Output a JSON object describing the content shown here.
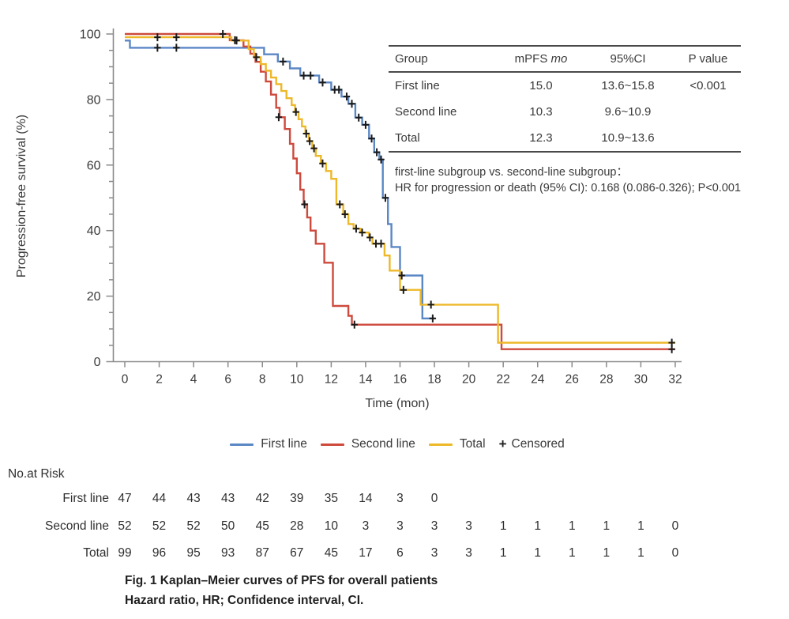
{
  "chart_data": {
    "type": "line",
    "subtype": "kaplan-meier-step",
    "title": "",
    "xlabel": "Time (mon)",
    "ylabel": "Progression-free survival (%)",
    "xlim": [
      0,
      32
    ],
    "ylim": [
      0,
      100
    ],
    "x_ticks": [
      0,
      2,
      4,
      6,
      8,
      10,
      12,
      14,
      16,
      18,
      20,
      22,
      24,
      26,
      28,
      30,
      32
    ],
    "y_ticks": [
      0,
      20,
      40,
      60,
      80,
      100
    ],
    "y_minor_step": 5,
    "grid": false,
    "legend_position": "bottom",
    "censor_color": "#1a1a1a",
    "axis_color": "#8a8a8a",
    "series": [
      {
        "name": "First line",
        "color": "#5b87c5",
        "steps": [
          [
            0,
            98
          ],
          [
            0.3,
            95.8
          ],
          [
            8.1,
            93.8
          ],
          [
            8.9,
            91.6
          ],
          [
            9.6,
            89.5
          ],
          [
            10.2,
            87.3
          ],
          [
            11.3,
            85.2
          ],
          [
            12.0,
            83.0
          ],
          [
            12.6,
            80.9
          ],
          [
            13.0,
            78.7
          ],
          [
            13.4,
            74.5
          ],
          [
            13.8,
            72.3
          ],
          [
            14.2,
            68.1
          ],
          [
            14.5,
            63.9
          ],
          [
            14.8,
            61.7
          ],
          [
            15.0,
            50.0
          ],
          [
            15.3,
            42.0
          ],
          [
            15.5,
            35.0
          ],
          [
            16.0,
            26.3
          ],
          [
            17.3,
            13.2
          ],
          [
            18.0,
            13.2
          ]
        ],
        "censors": [
          [
            1.9,
            95.8
          ],
          [
            3.0,
            95.8
          ],
          [
            9.2,
            91.6
          ],
          [
            10.4,
            87.3
          ],
          [
            10.8,
            87.3
          ],
          [
            11.5,
            85.2
          ],
          [
            12.2,
            83.0
          ],
          [
            12.45,
            83.0
          ],
          [
            12.9,
            80.9
          ],
          [
            13.2,
            78.7
          ],
          [
            13.6,
            74.5
          ],
          [
            14.0,
            72.3
          ],
          [
            14.35,
            68.1
          ],
          [
            14.65,
            63.9
          ],
          [
            14.9,
            61.7
          ],
          [
            15.15,
            50.0
          ],
          [
            16.1,
            26.3
          ],
          [
            17.9,
            13.2
          ]
        ]
      },
      {
        "name": "Second line",
        "color": "#cd4a3d",
        "steps": [
          [
            0,
            100
          ],
          [
            6.1,
            98.1
          ],
          [
            6.9,
            96.2
          ],
          [
            7.3,
            94.0
          ],
          [
            7.6,
            91.5
          ],
          [
            7.9,
            88.5
          ],
          [
            8.2,
            85.5
          ],
          [
            8.5,
            81.5
          ],
          [
            8.8,
            77.5
          ],
          [
            9.0,
            74.6
          ],
          [
            9.3,
            71.0
          ],
          [
            9.6,
            66.5
          ],
          [
            9.8,
            62.0
          ],
          [
            10.0,
            57.5
          ],
          [
            10.2,
            52.5
          ],
          [
            10.4,
            48.0
          ],
          [
            10.6,
            44.0
          ],
          [
            10.8,
            40.0
          ],
          [
            11.1,
            36.0
          ],
          [
            11.6,
            30.2
          ],
          [
            12.1,
            17.0
          ],
          [
            13.0,
            14.0
          ],
          [
            13.2,
            11.3
          ],
          [
            21.9,
            3.8
          ],
          [
            32,
            3.8
          ]
        ],
        "censors": [
          [
            5.7,
            100
          ],
          [
            6.4,
            98.1
          ],
          [
            8.95,
            74.6
          ],
          [
            10.45,
            48.0
          ],
          [
            13.35,
            11.3
          ],
          [
            31.8,
            3.8
          ]
        ]
      },
      {
        "name": "Total",
        "color": "#edb829",
        "steps": [
          [
            0,
            99
          ],
          [
            6.2,
            98.0
          ],
          [
            7.2,
            95.4
          ],
          [
            7.5,
            92.9
          ],
          [
            7.9,
            90.8
          ],
          [
            8.2,
            88.8
          ],
          [
            8.5,
            86.7
          ],
          [
            8.8,
            84.7
          ],
          [
            9.1,
            82.6
          ],
          [
            9.4,
            80.4
          ],
          [
            9.7,
            78.3
          ],
          [
            9.9,
            76.2
          ],
          [
            10.1,
            74.0
          ],
          [
            10.3,
            71.8
          ],
          [
            10.5,
            69.6
          ],
          [
            10.7,
            67.3
          ],
          [
            10.9,
            65.1
          ],
          [
            11.1,
            62.8
          ],
          [
            11.4,
            60.5
          ],
          [
            11.7,
            58.2
          ],
          [
            12.0,
            55.8
          ],
          [
            12.3,
            48.0
          ],
          [
            12.7,
            45.0
          ],
          [
            13.0,
            42.0
          ],
          [
            13.3,
            40.6
          ],
          [
            13.7,
            39.4
          ],
          [
            14.2,
            37.9
          ],
          [
            14.4,
            36.0
          ],
          [
            15.1,
            32.4
          ],
          [
            15.4,
            27.8
          ],
          [
            16.0,
            21.9
          ],
          [
            17.2,
            17.4
          ],
          [
            21.7,
            5.8
          ],
          [
            32,
            5.8
          ]
        ],
        "censors": [
          [
            1.9,
            99
          ],
          [
            3.0,
            99
          ],
          [
            6.5,
            98.0
          ],
          [
            7.65,
            92.9
          ],
          [
            9.95,
            76.2
          ],
          [
            10.55,
            69.6
          ],
          [
            10.75,
            67.3
          ],
          [
            11.0,
            65.1
          ],
          [
            11.5,
            60.5
          ],
          [
            12.5,
            48.0
          ],
          [
            12.8,
            45.0
          ],
          [
            13.45,
            40.6
          ],
          [
            13.8,
            39.4
          ],
          [
            14.25,
            37.9
          ],
          [
            14.6,
            36.0
          ],
          [
            14.9,
            36.0
          ],
          [
            16.2,
            21.9
          ],
          [
            17.8,
            17.4
          ],
          [
            31.8,
            5.8
          ]
        ]
      }
    ]
  },
  "stats_table": {
    "col_group": "Group",
    "col_mpfs_prefix": "mPFS ",
    "col_mpfs_unit": "mo",
    "col_ci": "95%CI",
    "col_p": "P value",
    "rows": [
      [
        "First line",
        "15.0",
        "13.6~15.8",
        "<0.001"
      ],
      [
        "Second line",
        "10.3",
        "9.6~10.9",
        ""
      ],
      [
        "Total",
        "12.3",
        "10.9~13.6",
        ""
      ]
    ]
  },
  "annotation": {
    "line1": "first-line subgroup vs. second-line subgroup：",
    "line2": "HR for progression or death (95% CI): 0.168 (0.086-0.326); P<0.001"
  },
  "legend": {
    "items": [
      {
        "label": "First line",
        "color": "#5b87c5"
      },
      {
        "label": "Second line",
        "color": "#cd4a3d"
      },
      {
        "label": "Total",
        "color": "#edb829"
      }
    ],
    "censored_symbol": "+",
    "censored_label": "Censored"
  },
  "risk_table": {
    "title": "No.at Risk",
    "time_step": 2,
    "rows": [
      {
        "label": "First line",
        "values": [
          47,
          44,
          43,
          43,
          42,
          39,
          35,
          14,
          3,
          0
        ]
      },
      {
        "label": "Second line",
        "values": [
          52,
          52,
          52,
          50,
          45,
          28,
          10,
          3,
          3,
          3,
          3,
          1,
          1,
          1,
          1,
          1,
          0
        ]
      },
      {
        "label": "Total",
        "values": [
          99,
          96,
          95,
          93,
          87,
          67,
          45,
          17,
          6,
          3,
          3,
          1,
          1,
          1,
          1,
          1,
          0
        ]
      }
    ]
  },
  "caption": {
    "line1": "Fig. 1 Kaplan–Meier curves of PFS for overall patients",
    "line2": "Hazard ratio, HR; Confidence interval, CI."
  }
}
